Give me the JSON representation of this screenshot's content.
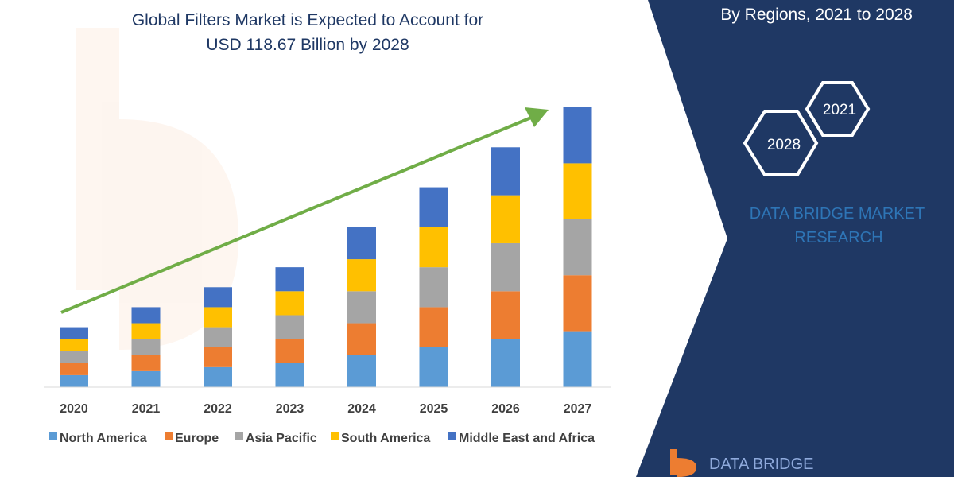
{
  "chart_data": {
    "type": "bar",
    "stacked": true,
    "title": [
      "Global Filters Market is Expected to Account for",
      "USD 118.67 Billion by 2028"
    ],
    "categories": [
      "2020",
      "2021",
      "2022",
      "2023",
      "2024",
      "2025",
      "2026",
      "2027"
    ],
    "series": [
      {
        "name": "North America",
        "color": "#5b9bd5",
        "values": [
          15,
          20,
          25,
          30,
          40,
          50,
          60,
          70
        ]
      },
      {
        "name": "Europe",
        "color": "#ed7d31",
        "values": [
          15,
          20,
          25,
          30,
          40,
          50,
          60,
          70
        ]
      },
      {
        "name": "Asia Pacific",
        "color": "#a5a5a5",
        "values": [
          15,
          20,
          25,
          30,
          40,
          50,
          60,
          70
        ]
      },
      {
        "name": "South America",
        "color": "#ffc000",
        "values": [
          15,
          20,
          25,
          30,
          40,
          50,
          60,
          70
        ]
      },
      {
        "name": "Middle East and Africa",
        "color": "#4472c4",
        "values": [
          15,
          20,
          25,
          30,
          40,
          50,
          60,
          70
        ]
      }
    ],
    "ylim": [
      0,
      350
    ],
    "legend": "bottom",
    "grid": false,
    "trend_arrow": true
  },
  "panel": {
    "subtitle": "By Regions, 2021 to 2028",
    "hex_years": [
      "2021",
      "2028"
    ],
    "brand": [
      "DATA BRIDGE MARKET",
      "RESEARCH"
    ],
    "logo_text": "DATA BRIDGE"
  },
  "colors": {
    "panel_bg": "#1f3864",
    "trend_arrow": "#70ad47",
    "brand": "#2e75b6"
  }
}
